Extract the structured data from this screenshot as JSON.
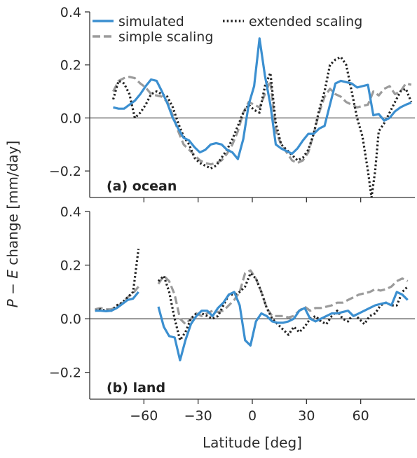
{
  "figure": {
    "ylabel_parts": [
      "P",
      " − ",
      "E",
      " change [mm/day]"
    ],
    "xlabel": "Latitude [deg]",
    "legend": [
      {
        "label": "simulated",
        "color": "#3b8fd0",
        "style": "solid"
      },
      {
        "label": "simple scaling",
        "color": "#9b9b9b",
        "style": "dashed"
      },
      {
        "label": "extended scaling",
        "color": "#222222",
        "style": "dotted"
      }
    ],
    "colors": {
      "simulated": "#3b8fd0",
      "simple": "#9b9b9b",
      "extended": "#222222",
      "text": "#2a2a2a"
    }
  },
  "chart_data": [
    {
      "type": "line",
      "panel_label": "(a) ocean",
      "xlabel": "Latitude [deg]",
      "ylabel": "P − E change [mm/day]",
      "xlim": [
        -90,
        90
      ],
      "ylim": [
        -0.3,
        0.4
      ],
      "xticks": [
        -60,
        -30,
        0,
        30,
        60
      ],
      "yticks": [
        -0.2,
        0.0,
        0.2,
        0.4
      ],
      "ytick_labels": [
        "−0.2",
        "0.0",
        "0.2",
        "0.4"
      ],
      "zero_line": true,
      "series": [
        {
          "name": "simulated",
          "x": [
            -77,
            -74,
            -71,
            -68,
            -65,
            -62,
            -59,
            -56,
            -53,
            -50,
            -47,
            -44,
            -41,
            -38,
            -35,
            -32,
            -29,
            -26,
            -23,
            -20,
            -17,
            -14,
            -11,
            -8,
            -5,
            -2,
            1,
            4,
            7,
            10,
            13,
            16,
            19,
            22,
            25,
            28,
            31,
            34,
            37,
            40,
            43,
            46,
            49,
            52,
            55,
            58,
            61,
            64,
            67,
            70,
            73,
            76,
            79,
            82,
            85,
            88
          ],
          "y": [
            0.04,
            0.035,
            0.035,
            0.05,
            0.065,
            0.09,
            0.12,
            0.145,
            0.14,
            0.1,
            0.055,
            0.0,
            -0.04,
            -0.075,
            -0.085,
            -0.11,
            -0.13,
            -0.12,
            -0.1,
            -0.095,
            -0.1,
            -0.12,
            -0.13,
            -0.155,
            -0.08,
            0.05,
            0.12,
            0.3,
            0.16,
            0.05,
            -0.1,
            -0.115,
            -0.125,
            -0.135,
            -0.115,
            -0.085,
            -0.06,
            -0.06,
            -0.04,
            -0.03,
            0.05,
            0.13,
            0.14,
            0.135,
            0.13,
            0.115,
            0.12,
            0.125,
            0.01,
            0.015,
            -0.01,
            0.0,
            0.025,
            0.04,
            0.05,
            0.058
          ]
        },
        {
          "name": "simple scaling",
          "x": [
            -77,
            -74,
            -71,
            -68,
            -65,
            -62,
            -59,
            -56,
            -53,
            -50,
            -47,
            -44,
            -41,
            -38,
            -35,
            -32,
            -29,
            -26,
            -23,
            -20,
            -17,
            -14,
            -11,
            -8,
            -5,
            -2,
            1,
            4,
            7,
            10,
            13,
            16,
            19,
            22,
            25,
            28,
            31,
            34,
            37,
            40,
            43,
            46,
            49,
            52,
            55,
            58,
            61,
            64,
            67,
            70,
            73,
            76,
            79,
            82,
            85,
            88
          ],
          "y": [
            0.1,
            0.14,
            0.15,
            0.155,
            0.15,
            0.13,
            0.115,
            0.09,
            0.085,
            0.08,
            0.06,
            0.01,
            -0.05,
            -0.1,
            -0.12,
            -0.14,
            -0.16,
            -0.17,
            -0.175,
            -0.17,
            -0.16,
            -0.135,
            -0.1,
            -0.05,
            0.02,
            0.06,
            0.05,
            0.04,
            0.09,
            0.14,
            -0.05,
            -0.1,
            -0.13,
            -0.16,
            -0.17,
            -0.16,
            -0.13,
            -0.06,
            0.02,
            0.08,
            0.11,
            0.09,
            0.08,
            0.06,
            0.05,
            0.04,
            0.045,
            0.05,
            0.1,
            0.085,
            0.11,
            0.12,
            0.09,
            0.1,
            0.13,
            0.125
          ]
        },
        {
          "name": "extended scaling",
          "x": [
            -77,
            -74,
            -71,
            -68,
            -65,
            -62,
            -59,
            -56,
            -53,
            -50,
            -47,
            -44,
            -41,
            -38,
            -35,
            -32,
            -29,
            -26,
            -23,
            -20,
            -17,
            -14,
            -11,
            -8,
            -5,
            -2,
            1,
            4,
            7,
            10,
            13,
            16,
            19,
            22,
            25,
            28,
            31,
            34,
            37,
            40,
            43,
            46,
            49,
            52,
            55,
            58,
            61,
            64,
            66,
            68,
            70,
            73,
            76,
            79,
            82,
            85,
            88
          ],
          "y": [
            0.07,
            0.14,
            0.13,
            0.09,
            0.0,
            0.02,
            0.05,
            0.09,
            0.1,
            0.09,
            0.08,
            0.04,
            -0.02,
            -0.07,
            -0.1,
            -0.15,
            -0.17,
            -0.18,
            -0.19,
            -0.18,
            -0.15,
            -0.12,
            -0.08,
            -0.03,
            0.02,
            0.05,
            0.03,
            0.02,
            0.12,
            0.17,
            -0.02,
            -0.1,
            -0.12,
            -0.14,
            -0.16,
            -0.15,
            -0.12,
            -0.06,
            0.03,
            0.1,
            0.2,
            0.22,
            0.23,
            0.2,
            0.1,
            0.0,
            -0.07,
            -0.2,
            -0.3,
            -0.2,
            -0.05,
            -0.02,
            0.02,
            0.06,
            0.1,
            0.11,
            0.06
          ]
        }
      ]
    },
    {
      "type": "line",
      "panel_label": "(b) land",
      "xlabel": "Latitude [deg]",
      "ylabel": "P − E change [mm/day]",
      "xlim": [
        -90,
        90
      ],
      "ylim": [
        -0.3,
        0.4
      ],
      "xticks": [
        -60,
        -30,
        0,
        30,
        60
      ],
      "xtick_labels": [
        "−60",
        "−30",
        "0",
        "30",
        "60"
      ],
      "yticks": [
        -0.2,
        0.0,
        0.2,
        0.4
      ],
      "ytick_labels": [
        "−0.2",
        "0.0",
        "0.2",
        "0.4"
      ],
      "zero_line": true,
      "series": [
        {
          "name": "simulated",
          "segments": [
            {
              "x": [
                -87,
                -84,
                -81,
                -78,
                -75,
                -72,
                -69,
                -66,
                -63
              ],
              "y": [
                0.03,
                0.03,
                0.028,
                0.03,
                0.04,
                0.055,
                0.07,
                0.075,
                0.1
              ]
            },
            {
              "x": [
                -52,
                -49,
                -46,
                -43,
                -40,
                -37,
                -34,
                -31,
                -28,
                -25,
                -22,
                -19,
                -16,
                -13,
                -10,
                -7,
                -4,
                -1,
                2,
                5,
                8,
                11,
                14,
                17,
                20,
                23,
                26,
                29,
                32,
                35,
                38,
                41,
                44,
                47,
                50,
                53,
                56,
                59,
                62,
                65,
                68,
                71,
                74,
                77,
                80,
                83,
                86
              ],
              "y": [
                0.045,
                -0.03,
                -0.065,
                -0.07,
                -0.155,
                -0.08,
                -0.02,
                0.01,
                0.03,
                0.03,
                0.01,
                0.04,
                0.06,
                0.09,
                0.1,
                0.05,
                -0.08,
                -0.1,
                -0.01,
                0.02,
                0.01,
                -0.01,
                -0.015,
                -0.015,
                -0.01,
                0.0,
                0.03,
                0.04,
                0.0,
                -0.01,
                0.0,
                0.01,
                0.02,
                0.02,
                0.025,
                0.03,
                0.01,
                0.02,
                0.03,
                0.04,
                0.05,
                0.055,
                0.06,
                0.05,
                0.1,
                0.09,
                0.07
              ]
            }
          ]
        },
        {
          "name": "simple scaling",
          "segments": [
            {
              "x": [
                -87,
                -84,
                -81,
                -78,
                -75,
                -72,
                -69,
                -66,
                -63
              ],
              "y": [
                0.035,
                0.04,
                0.035,
                0.035,
                0.045,
                0.06,
                0.08,
                0.095,
                0.12
              ]
            },
            {
              "x": [
                -52,
                -49,
                -46,
                -43,
                -40,
                -37,
                -34,
                -31,
                -28,
                -25,
                -22,
                -19,
                -16,
                -13,
                -10,
                -7,
                -4,
                -1,
                2,
                5,
                8,
                11,
                14,
                17,
                20,
                23,
                26,
                29,
                32,
                35,
                38,
                41,
                44,
                47,
                50,
                53,
                56,
                59,
                62,
                65,
                68,
                71,
                74,
                77,
                80,
                83,
                86
              ],
              "y": [
                0.13,
                0.16,
                0.14,
                0.09,
                0.0,
                -0.02,
                0.0,
                0.02,
                0.01,
                0.02,
                0.03,
                0.025,
                0.03,
                0.05,
                0.07,
                0.1,
                0.17,
                0.18,
                0.15,
                0.1,
                0.04,
                0.01,
                0.01,
                0.01,
                0.005,
                0.01,
                0.03,
                0.045,
                0.03,
                0.04,
                0.04,
                0.045,
                0.05,
                0.06,
                0.06,
                0.07,
                0.08,
                0.09,
                0.095,
                0.1,
                0.11,
                0.105,
                0.11,
                0.12,
                0.14,
                0.15,
                0.14
              ]
            }
          ]
        },
        {
          "name": "extended scaling",
          "segments": [
            {
              "x": [
                -87,
                -84,
                -81,
                -78,
                -75,
                -72,
                -69,
                -66,
                -63
              ],
              "y": [
                0.03,
                0.035,
                0.03,
                0.03,
                0.05,
                0.06,
                0.08,
                0.1,
                0.26
              ]
            },
            {
              "x": [
                -52,
                -49,
                -46,
                -43,
                -40,
                -37,
                -34,
                -31,
                -28,
                -25,
                -22,
                -19,
                -16,
                -13,
                -10,
                -7,
                -4,
                -1,
                2,
                5,
                8,
                11,
                14,
                17,
                20,
                23,
                26,
                29,
                32,
                35,
                38,
                41,
                44,
                47,
                50,
                53,
                56,
                59,
                62,
                65,
                68,
                71,
                74,
                77,
                80,
                83,
                86
              ],
              "y": [
                0.14,
                0.16,
                0.1,
                0.0,
                -0.08,
                -0.05,
                0.0,
                0.02,
                0.02,
                0.01,
                0.0,
                0.01,
                0.05,
                0.09,
                0.09,
                0.1,
                0.12,
                0.17,
                0.15,
                0.1,
                0.04,
                0.0,
                -0.02,
                -0.04,
                -0.06,
                -0.03,
                -0.05,
                -0.03,
                0.0,
                0.01,
                -0.01,
                -0.02,
                0.01,
                0.03,
                0.0,
                -0.01,
                0.02,
                0.0,
                -0.02,
                0.01,
                0.02,
                0.05,
                0.06,
                0.05,
                0.05,
                0.1,
                0.12
              ]
            }
          ]
        }
      ]
    }
  ]
}
